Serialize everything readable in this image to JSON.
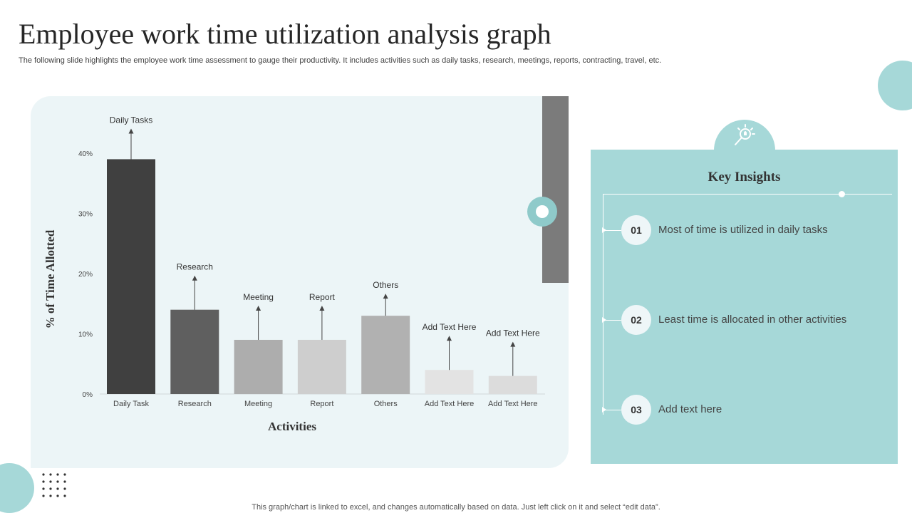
{
  "slide": {
    "title": "Employee work time utilization analysis graph",
    "subtitle": "The following slide highlights the employee work time assessment to gauge their productivity. It includes activities such as daily tasks, research, meetings, reports, contracting, travel, etc.",
    "footer": "This graph/chart is linked to excel, and changes automatically based on data. Just left click on it and select “edit data”."
  },
  "chart_data": {
    "type": "bar",
    "categories": [
      "Daily Task",
      "Research",
      "Meeting",
      "Report",
      "Others",
      "Add Text Here",
      "Add Text Here"
    ],
    "values": [
      39,
      14,
      9,
      9,
      13,
      4,
      3
    ],
    "annotations": [
      "Daily Tasks",
      "Research",
      "Meeting",
      "Report",
      "Others",
      "Add Text Here",
      "Add Text Here"
    ],
    "bar_colors": [
      "#404040",
      "#5f5f5f",
      "#adadad",
      "#cecece",
      "#b1b1b1",
      "#e3e3e3",
      "#dcdcdc"
    ],
    "xlabel": "Activities",
    "ylabel": "% of Time Allotted",
    "yticks": [
      "0%",
      "10%",
      "20%",
      "30%",
      "40%"
    ],
    "ylim": [
      0,
      40
    ],
    "grid": false,
    "legend": "none"
  },
  "insights": {
    "title": "Key Insights",
    "icon": "lightbulb-magnifier-icon",
    "items": [
      {
        "num": "01",
        "text": "Most of time is utilized in daily tasks"
      },
      {
        "num": "02",
        "text": "Least time is allocated in other activities"
      },
      {
        "num": "03",
        "text": "Add text here"
      }
    ]
  },
  "colors": {
    "accent": "#a6d8d8",
    "panel": "#ecf5f7",
    "dark_bar": "#7b7b7b"
  }
}
